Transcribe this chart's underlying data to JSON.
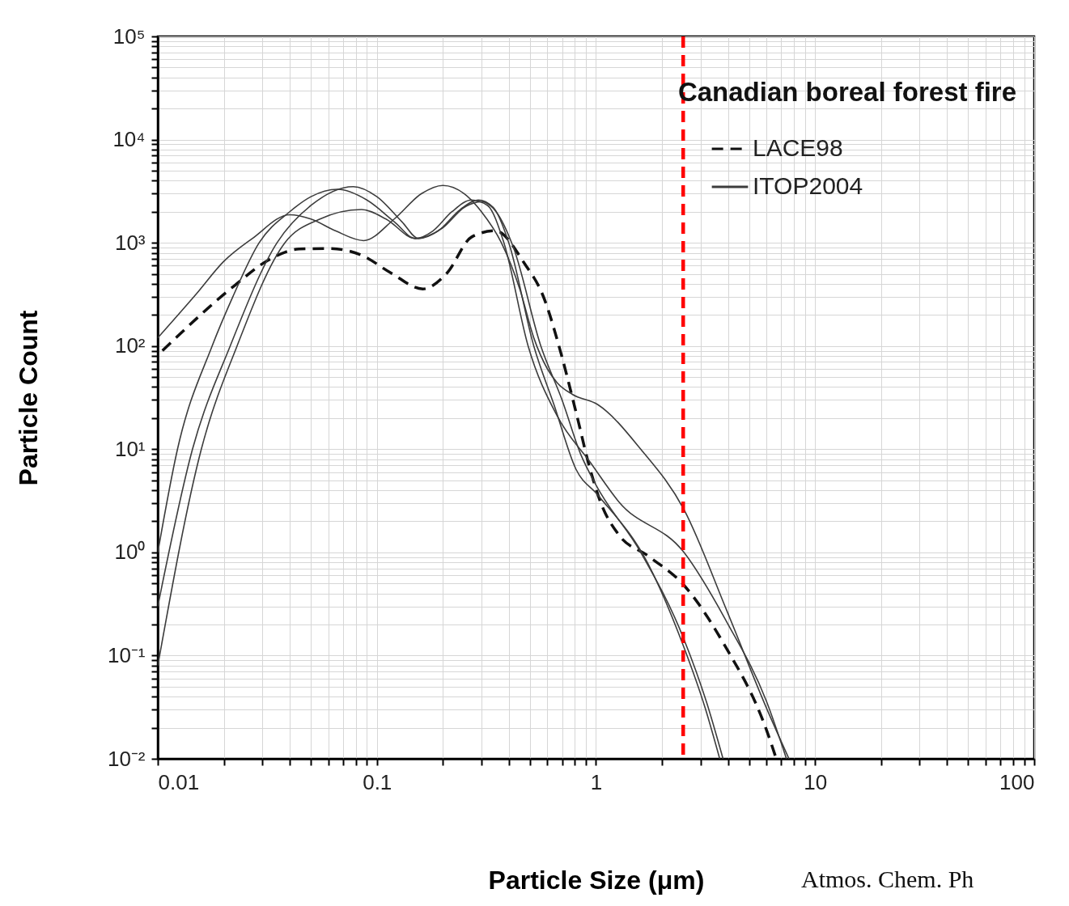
{
  "chart_data": {
    "type": "line",
    "title": "Canadian boreal forest fire",
    "xlabel": "Particle Size (μm)",
    "ylabel": "Particle Count",
    "annotations": [
      "Atmos. Chem. Ph"
    ],
    "log": "xy",
    "grid": true,
    "legend": "top right",
    "xlim": [
      0.01,
      100
    ],
    "ylim": [
      0.01,
      100000
    ],
    "xticks": [
      0.01,
      {
        "value": 0.02,
        "label": null
      },
      {
        "value": 0.03,
        "label": null
      },
      {
        "value": 0.04,
        "label": null
      },
      {
        "value": 0.05,
        "label": null
      },
      {
        "value": 0.06,
        "label": null
      },
      {
        "value": 0.07,
        "label": null
      },
      {
        "value": 0.08,
        "label": null
      },
      {
        "value": 0.09,
        "label": null
      },
      0.1,
      {
        "value": 0.2,
        "label": null
      },
      {
        "value": 0.3,
        "label": null
      },
      {
        "value": 0.4,
        "label": null
      },
      {
        "value": 0.5,
        "label": null
      },
      {
        "value": 0.6,
        "label": null
      },
      {
        "value": 0.7,
        "label": null
      },
      {
        "value": 0.8,
        "label": null
      },
      {
        "value": 0.9,
        "label": null
      },
      1,
      {
        "value": 2,
        "label": null
      },
      {
        "value": 3,
        "label": null
      },
      {
        "value": 4,
        "label": null
      },
      {
        "value": 5,
        "label": null
      },
      {
        "value": 6,
        "label": null
      },
      {
        "value": 7,
        "label": null
      },
      {
        "value": 8,
        "label": null
      },
      {
        "value": 9,
        "label": null
      },
      10,
      {
        "value": 20,
        "label": null
      },
      {
        "value": 30,
        "label": null
      },
      {
        "value": 40,
        "label": null
      },
      {
        "value": 50,
        "label": null
      },
      {
        "value": 60,
        "label": null
      },
      {
        "value": 70,
        "label": null
      },
      {
        "value": 80,
        "label": null
      },
      {
        "value": 90,
        "label": null
      },
      100
    ],
    "yticks": [
      {
        "value": 0.01,
        "label": "10⁻²"
      },
      {
        "value": 0.02,
        "label": null
      },
      {
        "value": 0.03,
        "label": null
      },
      {
        "value": 0.04,
        "label": null
      },
      {
        "value": 0.05,
        "label": null
      },
      {
        "value": 0.06,
        "label": null
      },
      {
        "value": 0.07,
        "label": null
      },
      {
        "value": 0.08,
        "label": null
      },
      {
        "value": 0.09,
        "label": null
      },
      {
        "value": 0.1,
        "label": "10⁻¹"
      },
      {
        "value": 0.2,
        "label": null
      },
      {
        "value": 0.3,
        "label": null
      },
      {
        "value": 0.4,
        "label": null
      },
      {
        "value": 0.5,
        "label": null
      },
      {
        "value": 0.6,
        "label": null
      },
      {
        "value": 0.7,
        "label": null
      },
      {
        "value": 0.8,
        "label": null
      },
      {
        "value": 0.9,
        "label": null
      },
      {
        "value": 1,
        "label": "10⁰"
      },
      {
        "value": 2,
        "label": null
      },
      {
        "value": 3,
        "label": null
      },
      {
        "value": 4,
        "label": null
      },
      {
        "value": 5,
        "label": null
      },
      {
        "value": 6,
        "label": null
      },
      {
        "value": 7,
        "label": null
      },
      {
        "value": 8,
        "label": null
      },
      {
        "value": 9,
        "label": null
      },
      {
        "value": 10,
        "label": "10¹"
      },
      {
        "value": 20,
        "label": null
      },
      {
        "value": 30,
        "label": null
      },
      {
        "value": 40,
        "label": null
      },
      {
        "value": 50,
        "label": null
      },
      {
        "value": 60,
        "label": null
      },
      {
        "value": 70,
        "label": null
      },
      {
        "value": 80,
        "label": null
      },
      {
        "value": 90,
        "label": null
      },
      {
        "value": 100,
        "label": "10²"
      },
      {
        "value": 200,
        "label": null
      },
      {
        "value": 300,
        "label": null
      },
      {
        "value": 400,
        "label": null
      },
      {
        "value": 500,
        "label": null
      },
      {
        "value": 600,
        "label": null
      },
      {
        "value": 700,
        "label": null
      },
      {
        "value": 800,
        "label": null
      },
      {
        "value": 900,
        "label": null
      },
      {
        "value": 1000,
        "label": "10³"
      },
      {
        "value": 2000,
        "label": null
      },
      {
        "value": 3000,
        "label": null
      },
      {
        "value": 4000,
        "label": null
      },
      {
        "value": 5000,
        "label": null
      },
      {
        "value": 6000,
        "label": null
      },
      {
        "value": 7000,
        "label": null
      },
      {
        "value": 8000,
        "label": null
      },
      {
        "value": 9000,
        "label": null
      },
      {
        "value": 10000,
        "label": "10⁴"
      },
      {
        "value": 20000,
        "label": null
      },
      {
        "value": 30000,
        "label": null
      },
      {
        "value": 40000,
        "label": null
      },
      {
        "value": 50000,
        "label": null
      },
      {
        "value": 60000,
        "label": null
      },
      {
        "value": 70000,
        "label": null
      },
      {
        "value": 80000,
        "label": null
      },
      {
        "value": 90000,
        "label": null
      },
      {
        "value": 100000,
        "label": "10⁵"
      }
    ],
    "ref_lines": [
      {
        "axis": "x",
        "value": 2.5,
        "color": "#ff0000",
        "line_style": "dashed"
      }
    ],
    "series": [
      {
        "name": "LACE98",
        "color": "#111111",
        "line_style": "dashed",
        "x": [
          0.0105,
          0.0224,
          0.032,
          0.0442,
          0.0606,
          0.085,
          0.116,
          0.162,
          0.209,
          0.27,
          0.346,
          0.473,
          0.575,
          0.693,
          0.81,
          0.94,
          1.05,
          1.27,
          1.72,
          2.52,
          3.83,
          6.0,
          6.65
        ],
        "values": [
          90,
          385,
          680,
          870,
          880,
          760,
          510,
          357,
          510,
          1135,
          1310,
          625,
          302,
          84,
          23,
          6.4,
          3.05,
          1.48,
          0.93,
          0.48,
          0.13,
          0.019,
          0.01
        ]
      },
      {
        "name": "ITOP2004",
        "color": "#3c3c3c",
        "line_style": "solid",
        "x": [
          0.01,
          0.015,
          0.02,
          0.027,
          0.04,
          0.05,
          0.065,
          0.087,
          0.12,
          0.16,
          0.2,
          0.25,
          0.3,
          0.37,
          0.45,
          0.52,
          0.6,
          0.665,
          0.78,
          1.02,
          1.6,
          2.52,
          3.96,
          6.0,
          7.6
        ],
        "values": [
          120,
          320,
          660,
          1100,
          1870,
          1700,
          1300,
          1050,
          1700,
          3000,
          3600,
          3000,
          2000,
          1000,
          350,
          120,
          60,
          44,
          34,
          27,
          10,
          2.6,
          0.27,
          0.031,
          0.01
        ]
      },
      {
        "color": "#3c3c3c",
        "line_style": "solid",
        "x": [
          0.01,
          0.0123,
          0.0177,
          0.022,
          0.029,
          0.04,
          0.05,
          0.066,
          0.09,
          0.12,
          0.15,
          0.18,
          0.22,
          0.27,
          0.32,
          0.38,
          0.49,
          0.665,
          0.94,
          1.27,
          2.52,
          3.96,
          6.0,
          7.4
        ],
        "values": [
          1,
          10,
          100,
          300,
          1000,
          2000,
          2800,
          3300,
          2600,
          1600,
          1100,
          1300,
          2000,
          2600,
          2300,
          1000,
          100,
          21,
          7.5,
          3.1,
          1.0,
          0.21,
          0.036,
          0.01
        ]
      },
      {
        "color": "#3c3c3c",
        "line_style": "solid",
        "x": [
          0.01,
          0.0144,
          0.0214,
          0.035,
          0.05,
          0.078,
          0.1,
          0.13,
          0.155,
          0.19,
          0.24,
          0.29,
          0.34,
          0.4,
          0.52,
          0.643,
          0.81,
          1.02,
          1.72,
          2.52,
          3.15,
          3.67
        ],
        "values": [
          0.3,
          10,
          100,
          1000,
          2300,
          3500,
          2800,
          1600,
          1100,
          1300,
          2100,
          2600,
          2200,
          1000,
          100,
          27,
          6.4,
          3.6,
          0.79,
          0.12,
          0.031,
          0.01
        ]
      },
      {
        "color": "#3c3c3c",
        "line_style": "solid",
        "x": [
          0.01,
          0.0158,
          0.023,
          0.038,
          0.055,
          0.085,
          0.11,
          0.15,
          0.2,
          0.25,
          0.3,
          0.35,
          0.42,
          0.56,
          0.7,
          0.85,
          1.0,
          1.6,
          2.5,
          3.2,
          3.8
        ],
        "values": [
          0.08,
          10,
          100,
          1000,
          1700,
          2100,
          1700,
          1100,
          1400,
          2200,
          2500,
          2000,
          900,
          100,
          30,
          9,
          4.5,
          1.0,
          0.15,
          0.035,
          0.01
        ]
      }
    ]
  }
}
